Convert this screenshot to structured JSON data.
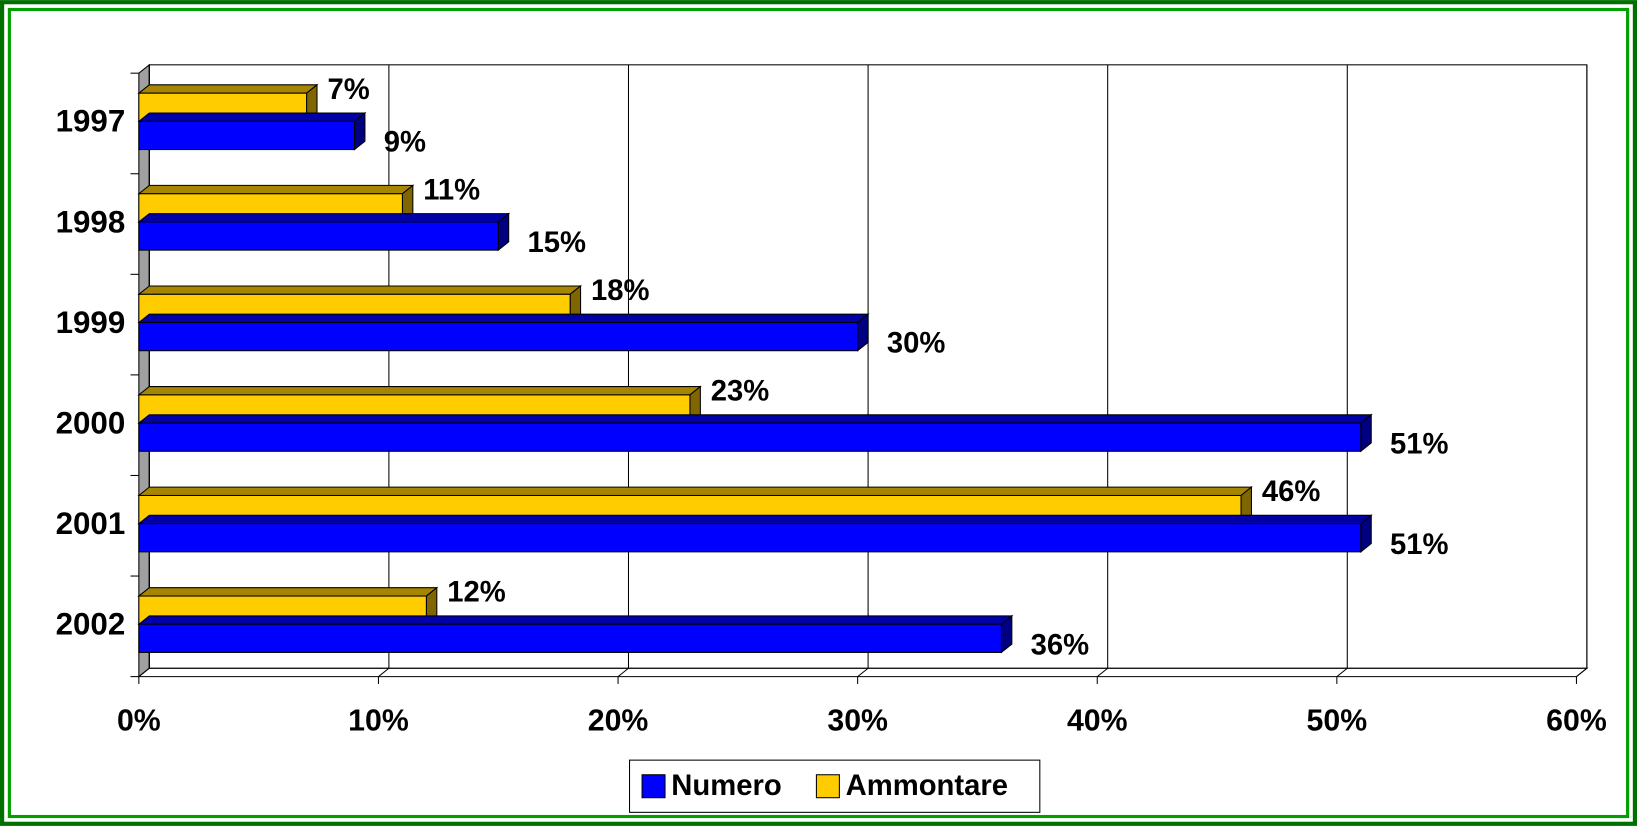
{
  "chart_data": {
    "type": "bar3d_horizontal",
    "categories": [
      "1997",
      "1998",
      "1999",
      "2000",
      "2001",
      "2002"
    ],
    "series": [
      {
        "name": "Numero",
        "color": "#0000ff",
        "values": [
          9,
          15,
          30,
          51,
          51,
          36
        ],
        "value_labels": [
          "9%",
          "15%",
          "30%",
          "51%",
          "51%",
          "36%"
        ]
      },
      {
        "name": "Ammontare",
        "color": "#ffcc00",
        "values": [
          7,
          11,
          18,
          23,
          46,
          12
        ],
        "value_labels": [
          "7%",
          "11%",
          "18%",
          "23%",
          "46%",
          "12%"
        ]
      }
    ],
    "xlim": [
      0,
      60
    ],
    "xticks": [
      {
        "value": 0,
        "label": "0%"
      },
      {
        "value": 10,
        "label": "10%"
      },
      {
        "value": 20,
        "label": "20%"
      },
      {
        "value": 30,
        "label": "30%"
      },
      {
        "value": 40,
        "label": "40%"
      },
      {
        "value": 50,
        "label": "50%"
      },
      {
        "value": 60,
        "label": "60%"
      }
    ],
    "grid": true,
    "legend": "bottom"
  }
}
